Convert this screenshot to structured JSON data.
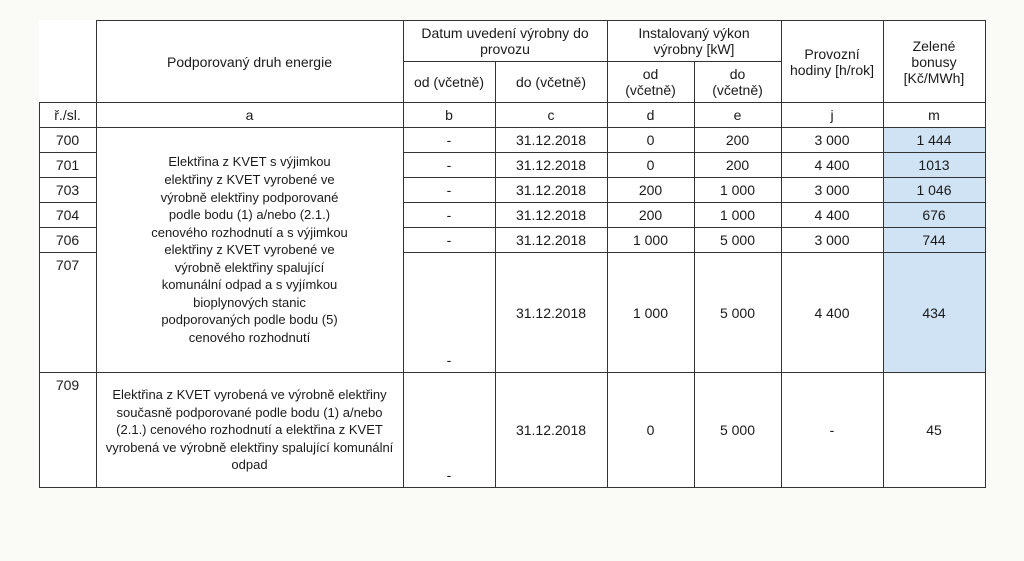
{
  "headers": {
    "druh": "Podporovaný druh energie",
    "datum": "Datum uvedení výrobny do provozu",
    "datum_od": "od (včetně)",
    "datum_do": "do (včetně)",
    "vykon": "Instalovaný výkon výrobny  [kW]",
    "vykon_od": "od (včetně)",
    "vykon_do": "do (včetně)",
    "hodiny": "Provozní hodiny [h/rok]",
    "bonusy": "Zelené bonusy [Kč/MWh]"
  },
  "colcodes": {
    "rsl": "ř./sl.",
    "a": "a",
    "b": "b",
    "c": "c",
    "d": "d",
    "e": "e",
    "j": "j",
    "m": "m"
  },
  "desc1_lines": [
    "Elektřina z KVET s výjimkou",
    "elektřiny z KVET vyrobené ve",
    "výrobně elektřiny podporované",
    "podle bodu (1) a/nebo (2.1.)",
    "cenového rozhodnutí a s výjimkou",
    "elektřiny z KVET vyrobené ve",
    "výrobně elektřiny spalující",
    "komunální odpad a s vyjímkou",
    "bioplynových stanic",
    "podporovaných podle bodu (5)",
    "cenového rozhodnutí"
  ],
  "desc2": "Elektřina z KVET vyrobená ve výrobně elektřiny současně podporované podle bodu (1) a/nebo (2.1.) cenového rozhodnutí a elektřina z KVET vyrobená ve výrobně elektřiny spalující komunální odpad",
  "rows": [
    {
      "num": "700",
      "b": "-",
      "c": "31.12.2018",
      "d": "0",
      "e": "200",
      "j": "3 000",
      "m": "1 444",
      "hl": true
    },
    {
      "num": "701",
      "b": "-",
      "c": "31.12.2018",
      "d": "0",
      "e": "200",
      "j": "4 400",
      "m": "1013",
      "hl": true
    },
    {
      "num": "703",
      "b": "-",
      "c": "31.12.2018",
      "d": "200",
      "e": "1 000",
      "j": "3 000",
      "m": "1 046",
      "hl": true
    },
    {
      "num": "704",
      "b": "-",
      "c": "31.12.2018",
      "d": "200",
      "e": "1 000",
      "j": "4 400",
      "m": "676",
      "hl": true
    },
    {
      "num": "706",
      "b": "-",
      "c": "31.12.2018",
      "d": "1 000",
      "e": "5 000",
      "j": "3 000",
      "m": "744",
      "hl": true
    },
    {
      "num": "707",
      "b": "-",
      "c": "31.12.2018",
      "d": "1 000",
      "e": "5 000",
      "j": "4 400",
      "m": "434",
      "hl": true
    },
    {
      "num": "709",
      "b": "-",
      "c": "31.12.2018",
      "d": "0",
      "e": "5 000",
      "j": "-",
      "m": "45",
      "hl": false
    }
  ],
  "style": {
    "highlight_color": "#cfe3f5",
    "border_color": "#333333",
    "background": "#fafaf7",
    "font_family": "Arial",
    "font_size_pt": 11
  }
}
